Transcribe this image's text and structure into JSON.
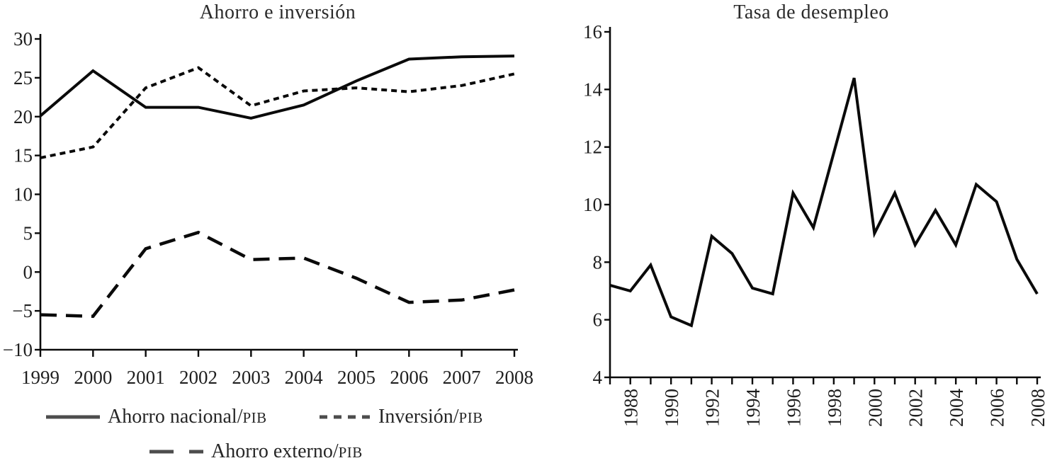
{
  "page": {
    "background": "#ffffff",
    "line_color": "#0a0a0a",
    "text_color": "#1f1f1f",
    "legend_sample_color": "#4d4d4d"
  },
  "chart_data": [
    {
      "id": "savings",
      "type": "line",
      "title": "Ahorro e inversión",
      "xlabel": "",
      "ylabel": "",
      "ylim": [
        -10,
        30
      ],
      "grid": false,
      "x_ticks": [
        1999,
        2000,
        2001,
        2002,
        2003,
        2004,
        2005,
        2006,
        2007,
        2008
      ],
      "x_label_years": [
        1999,
        2000,
        2001,
        2002,
        2003,
        2004,
        2005,
        2006,
        2007,
        2008
      ],
      "x_labels": [
        "1999",
        "2000",
        "2001",
        "2002",
        "2003",
        "2004",
        "2005",
        "2006",
        "2007",
        "2008"
      ],
      "y_ticks": [
        30,
        25,
        20,
        15,
        10,
        5,
        0,
        -5,
        -10
      ],
      "y_tick_labels": [
        "30",
        "25",
        "20",
        "15",
        "10",
        "5",
        "0",
        "−5",
        "−10"
      ],
      "series": [
        {
          "name": "Ahorro nacional/PIB",
          "style": "solid",
          "values": [
            20.1,
            25.9,
            21.2,
            21.2,
            19.8,
            21.5,
            24.6,
            27.4,
            27.7,
            27.8
          ]
        },
        {
          "name": "Inversión/PIB",
          "style": "dotted",
          "values": [
            14.7,
            16.1,
            23.7,
            26.3,
            21.4,
            23.3,
            23.7,
            23.2,
            24.0,
            25.5
          ]
        },
        {
          "name": "Ahorro externo/PIB",
          "style": "dashed",
          "values": [
            -5.5,
            -5.7,
            3.0,
            5.1,
            1.6,
            1.8,
            -0.8,
            -3.9,
            -3.6,
            -2.3
          ]
        }
      ],
      "legend": [
        {
          "label": "Ahorro nacional/",
          "suffix": "PIB",
          "style": "solid"
        },
        {
          "label": "Inversión/",
          "suffix": "PIB",
          "style": "dotted"
        },
        {
          "label": "Ahorro externo/",
          "suffix": "PIB",
          "style": "dashed"
        }
      ],
      "legend_position": "below"
    },
    {
      "id": "unemployment",
      "type": "line",
      "title": "Tasa de desempleo",
      "xlabel": "",
      "ylabel": "",
      "ylim": [
        4,
        16
      ],
      "grid": false,
      "x_ticks": [
        1987,
        1988,
        1989,
        1990,
        1991,
        1992,
        1993,
        1994,
        1995,
        1996,
        1997,
        1998,
        1999,
        2000,
        2001,
        2002,
        2003,
        2004,
        2005,
        2006,
        2007,
        2008
      ],
      "x_label_years": [
        1988,
        1990,
        1992,
        1994,
        1996,
        1998,
        2000,
        2002,
        2004,
        2006,
        2008
      ],
      "x_labels": [
        "1988",
        "1990",
        "1992",
        "1994",
        "1996",
        "1998",
        "2000",
        "2002",
        "2004",
        "2006",
        "2008"
      ],
      "y_ticks": [
        16,
        14,
        12,
        10,
        8,
        6,
        4
      ],
      "y_tick_labels": [
        "16",
        "14",
        "12",
        "10",
        "8",
        "6",
        "4"
      ],
      "series": [
        {
          "name": "Tasa de desempleo",
          "style": "solid",
          "values": [
            7.2,
            7.0,
            7.9,
            6.1,
            5.8,
            8.9,
            8.3,
            7.1,
            6.9,
            10.4,
            9.2,
            11.8,
            14.4,
            9.0,
            10.4,
            8.6,
            9.8,
            8.6,
            10.7,
            10.1,
            8.1,
            6.9
          ]
        }
      ],
      "legend": [],
      "legend_position": "none"
    }
  ]
}
